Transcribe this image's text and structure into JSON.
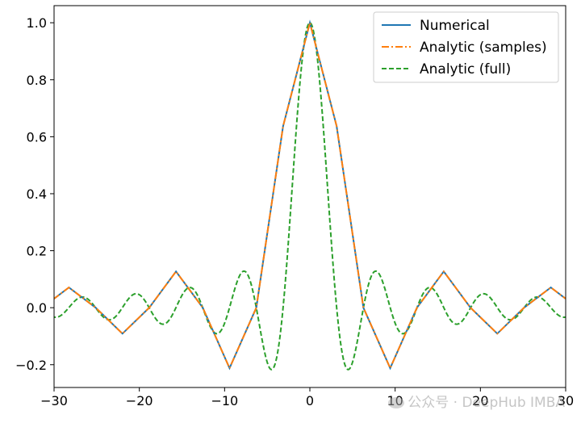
{
  "chart_data": {
    "type": "line",
    "title": "",
    "xlabel": "",
    "ylabel": "",
    "xlim": [
      -30,
      30
    ],
    "ylim": [
      -0.28,
      1.06
    ],
    "xticks": [
      -30,
      -20,
      -10,
      0,
      10,
      20,
      30
    ],
    "xtick_labels": [
      "−30",
      "−20",
      "−10",
      "0",
      "10",
      "20",
      "30"
    ],
    "yticks": [
      -0.2,
      0.0,
      0.2,
      0.4,
      0.6,
      0.8,
      1.0
    ],
    "ytick_labels": [
      "−0.2",
      "0.0",
      "0.2",
      "0.4",
      "0.6",
      "0.8",
      "1.0"
    ],
    "grid": false,
    "legend_position": "top-right",
    "sample_x": [
      -31.4,
      -28.26,
      -25.12,
      -21.98,
      -18.84,
      -15.7,
      -12.56,
      -9.42,
      -6.28,
      -3.14,
      0,
      3.14,
      6.28,
      9.42,
      12.56,
      15.7,
      18.84,
      21.98,
      25.12,
      28.26,
      31.4
    ],
    "series": [
      {
        "name": "Numerical",
        "color": "#1f77b4",
        "style": "solid",
        "x": [
          -31.4,
          -28.26,
          -25.12,
          -21.98,
          -18.84,
          -15.7,
          -12.56,
          -9.42,
          -6.28,
          -3.14,
          0,
          3.14,
          6.28,
          9.42,
          12.56,
          15.7,
          18.84,
          21.98,
          25.12,
          28.26,
          31.4
        ],
        "y": [
          0,
          0.071,
          0,
          -0.091,
          0,
          0.127,
          0,
          -0.212,
          0,
          0.637,
          1.0,
          0.637,
          0,
          -0.212,
          0,
          0.127,
          0,
          -0.091,
          0,
          0.071,
          0
        ]
      },
      {
        "name": "Analytic (samples)",
        "color": "#ff7f0e",
        "style": "dashdot",
        "x": [
          -31.4,
          -28.26,
          -25.12,
          -21.98,
          -18.84,
          -15.7,
          -12.56,
          -9.42,
          -6.28,
          -3.14,
          0,
          3.14,
          6.28,
          9.42,
          12.56,
          15.7,
          18.84,
          21.98,
          25.12,
          28.26,
          31.4
        ],
        "y": [
          0,
          0.071,
          0,
          -0.091,
          0,
          0.127,
          0,
          -0.212,
          0,
          0.637,
          1.0,
          0.637,
          0,
          -0.212,
          0,
          0.127,
          0,
          -0.091,
          0,
          0.071,
          0
        ]
      },
      {
        "name": "Analytic (full)",
        "color": "#2ca02c",
        "style": "dashed",
        "function": "sinc",
        "x_range": [
          -30,
          30
        ]
      }
    ]
  },
  "watermark": {
    "text": "公众号 · DeepHub IMBA",
    "icon": "wechat-icon"
  }
}
